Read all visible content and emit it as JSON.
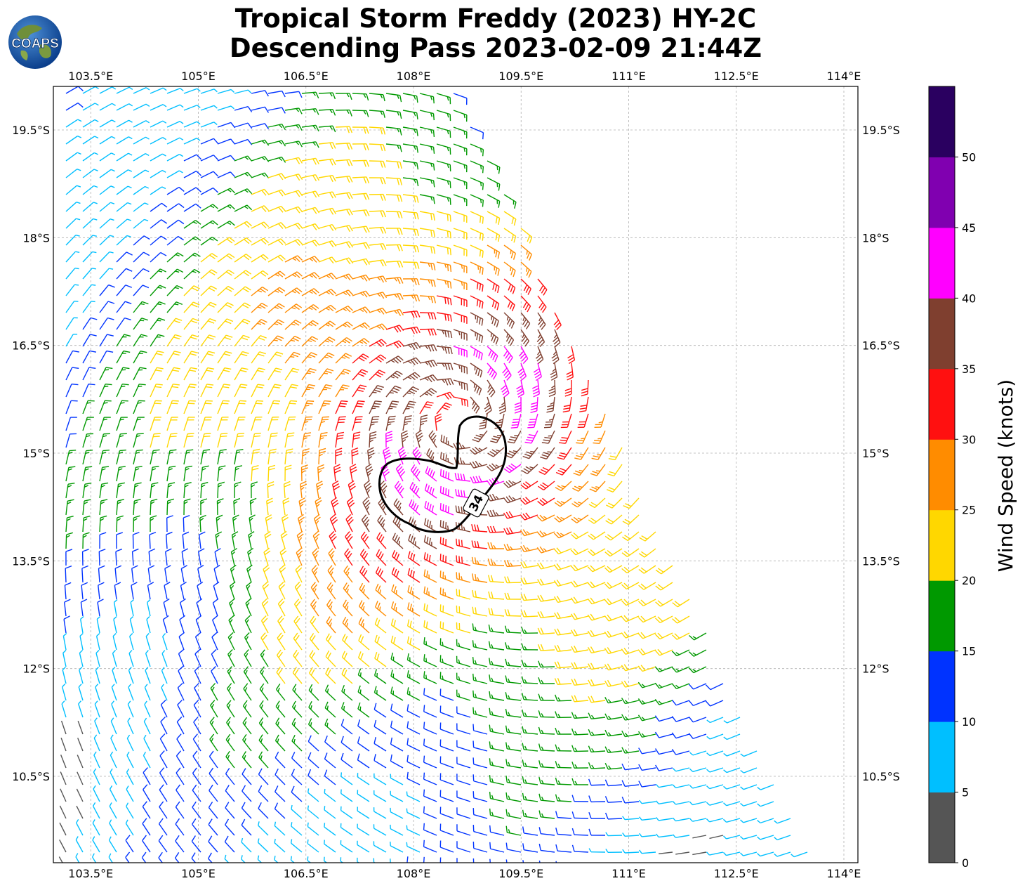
{
  "title": {
    "line1": "Tropical Storm Freddy (2023) HY-2C",
    "line2": "Descending Pass 2023-02-09 21:44Z"
  },
  "logo": {
    "text": "COAPS"
  },
  "map": {
    "lon_ticks": [
      "103.5°E",
      "105°E",
      "106.5°E",
      "108°E",
      "109.5°E",
      "111°E",
      "112.5°E",
      "114°E"
    ],
    "lat_ticks": [
      "10.5°S",
      "12°S",
      "13.5°S",
      "15°S",
      "16.5°S",
      "18°S",
      "19.5°S"
    ],
    "contour_label": "34",
    "storm_center": {
      "lon": 108.6,
      "lat": -15.45
    },
    "swath_edge_colors": {
      "low": "#555555"
    }
  },
  "colorbar": {
    "label": "Wind Speed (knots)",
    "ticks": [
      "0",
      "5",
      "10",
      "15",
      "20",
      "25",
      "30",
      "35",
      "40",
      "45",
      "50"
    ],
    "colors": [
      "#555555",
      "#00bfff",
      "#0033ff",
      "#009900",
      "#ffd700",
      "#ff8c00",
      "#ff1010",
      "#7f3f2f",
      "#ff00ff",
      "#8000b0",
      "#2a0060"
    ]
  }
}
